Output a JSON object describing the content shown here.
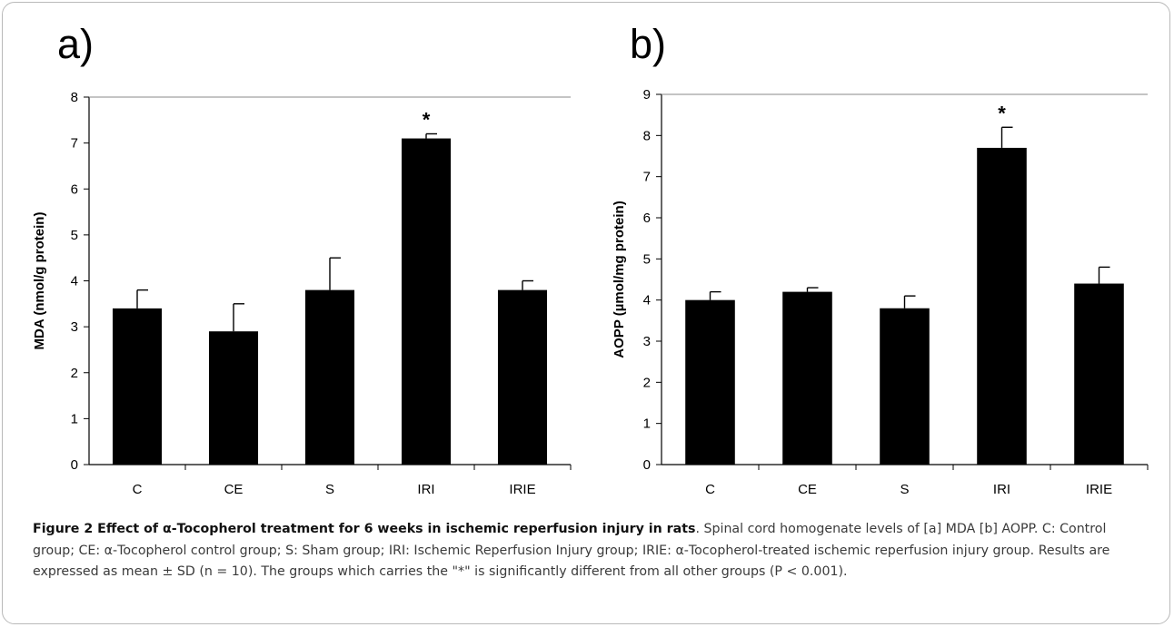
{
  "chart_data": [
    {
      "panel_label": "a)",
      "type": "bar",
      "categories": [
        "C",
        "CE",
        "S",
        "IRI",
        "IRIE"
      ],
      "values": [
        3.4,
        2.9,
        3.8,
        7.1,
        3.8
      ],
      "errors": [
        0.4,
        0.6,
        0.7,
        0.1,
        0.2
      ],
      "annotations": [
        "",
        "",
        "",
        "*",
        ""
      ],
      "ylabel": "MDA (nmol/g protein)",
      "xlabel": "",
      "ylim": [
        0,
        8
      ],
      "yticks": [
        0,
        1,
        2,
        3,
        4,
        5,
        6,
        7,
        8
      ],
      "bar_color": "#000000",
      "grid": false
    },
    {
      "panel_label": "b)",
      "type": "bar",
      "categories": [
        "C",
        "CE",
        "S",
        "IRI",
        "IRIE"
      ],
      "values": [
        4.0,
        4.2,
        3.8,
        7.7,
        4.4
      ],
      "errors": [
        0.2,
        0.1,
        0.3,
        0.5,
        0.4
      ],
      "annotations": [
        "",
        "",
        "",
        "*",
        ""
      ],
      "ylabel": "AOPP (µmol/mg protein)",
      "xlabel": "",
      "ylim": [
        0,
        9
      ],
      "yticks": [
        0,
        1,
        2,
        3,
        4,
        5,
        6,
        7,
        8,
        9
      ],
      "bar_color": "#000000",
      "grid": false
    }
  ],
  "caption": {
    "lead": "Figure 2 Effect of α-Tocopherol treatment for 6 weeks in ischemic reperfusion injury in rats",
    "body": ". Spinal cord homogenate levels of [a] MDA [b] AOPP. C: Control group; CE: α-Tocopherol control group; S: Sham group; IRI: Ischemic Reperfusion Injury group; IRIE: α-Tocopherol-treated ischemic reperfusion injury group. Results are expressed as mean ± SD (n = 10). The groups which carries the \"*\" is significantly different from all other groups (P < 0.001)."
  }
}
